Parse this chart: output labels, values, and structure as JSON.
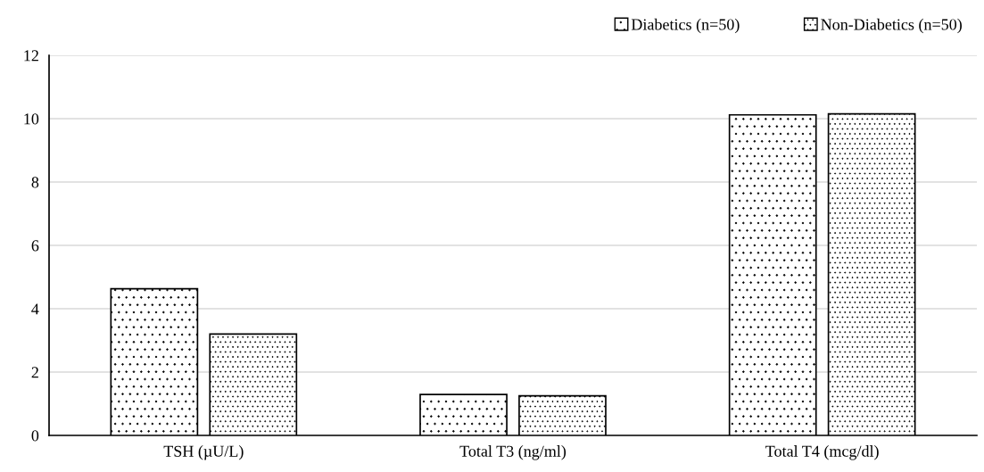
{
  "chart_data": {
    "type": "bar",
    "categories": [
      "TSH (µU/L)",
      "Total T3 (ng/ml)",
      "Total T4 (mcg/dl)"
    ],
    "series": [
      {
        "name": "Diabetics (n=50)",
        "color": "#ffffff",
        "values": [
          4.63,
          1.29,
          10.12
        ]
      },
      {
        "name": "Non-Diabetics (n=50)",
        "color": "#ffffff",
        "values": [
          3.2,
          1.25,
          10.15
        ]
      }
    ],
    "ylim": [
      0,
      12
    ],
    "yticks": [
      0,
      2,
      4,
      6,
      8,
      10,
      12
    ],
    "grid": "y",
    "legend": "top right"
  }
}
